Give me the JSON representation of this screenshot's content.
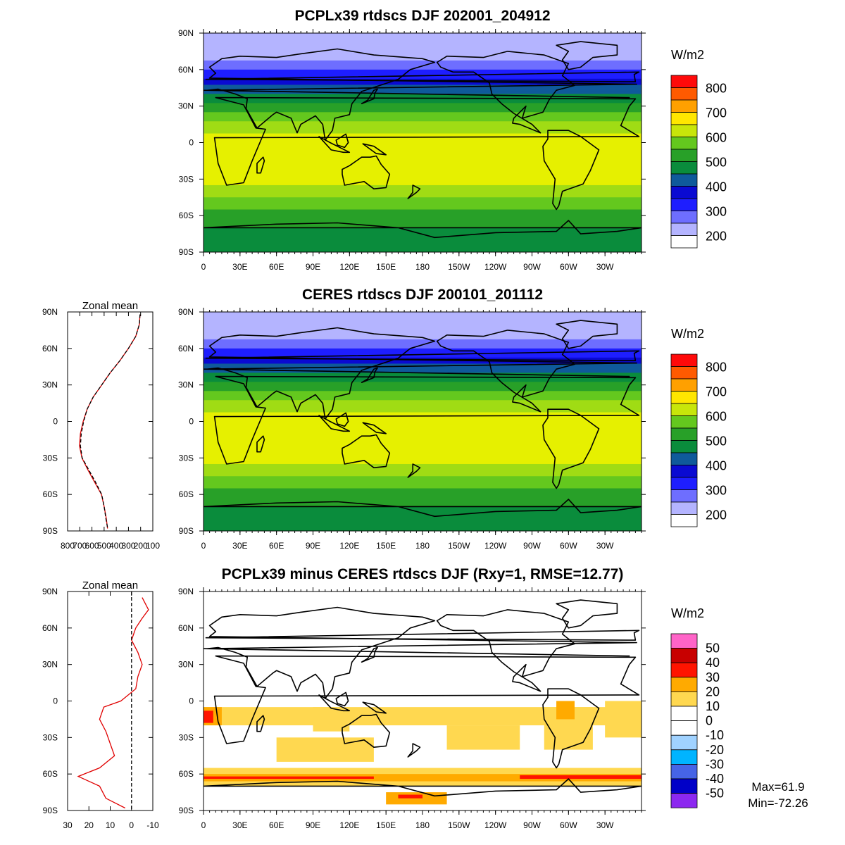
{
  "chart_data": [
    {
      "type": "heatmap",
      "title": "PCPLx39 rtdscs DJF 202001_204912",
      "x_ticks": [
        "0",
        "30E",
        "60E",
        "90E",
        "120E",
        "150E",
        "180",
        "150W",
        "120W",
        "90W",
        "60W",
        "30W"
      ],
      "y_ticks": [
        "90N",
        "60N",
        "30N",
        "0",
        "30S",
        "60S",
        "90S"
      ],
      "colorbar": {
        "unit": "W/m2",
        "levels": [
          "200",
          "300",
          "400",
          "500",
          "600",
          "700",
          "800"
        ],
        "colors": [
          "#ffffff",
          "#b4b4ff",
          "#6e6eff",
          "#1e1eff",
          "#0a0ad2",
          "#0f5a9b",
          "#0a8c3c",
          "#28a028",
          "#64c81e",
          "#a0dc14",
          "#e6f000",
          "#ffe600",
          "#ffa000",
          "#ff5a00",
          "#ff0a0a"
        ]
      },
      "latitude_profile": [
        {
          "lat": 90,
          "value": 200
        },
        {
          "lat": 80,
          "value": 210
        },
        {
          "lat": 70,
          "value": 240
        },
        {
          "lat": 60,
          "value": 300
        },
        {
          "lat": 50,
          "value": 370
        },
        {
          "lat": 40,
          "value": 450
        },
        {
          "lat": 30,
          "value": 520
        },
        {
          "lat": 20,
          "value": 590
        },
        {
          "lat": 10,
          "value": 640
        },
        {
          "lat": 0,
          "value": 670
        },
        {
          "lat": -10,
          "value": 695
        },
        {
          "lat": -20,
          "value": 700
        },
        {
          "lat": -30,
          "value": 680
        },
        {
          "lat": -40,
          "value": 630
        },
        {
          "lat": -50,
          "value": 575
        },
        {
          "lat": -60,
          "value": 520
        },
        {
          "lat": -70,
          "value": 500
        },
        {
          "lat": -80,
          "value": 480
        },
        {
          "lat": -90,
          "value": 470
        }
      ]
    },
    {
      "type": "heatmap",
      "title": "CERES rtdscs DJF 200101_201112",
      "x_ticks": [
        "0",
        "30E",
        "60E",
        "90E",
        "120E",
        "150E",
        "180",
        "150W",
        "120W",
        "90W",
        "60W",
        "30W"
      ],
      "y_ticks": [
        "90N",
        "60N",
        "30N",
        "0",
        "30S",
        "60S",
        "90S"
      ],
      "colorbar": {
        "unit": "W/m2",
        "levels": [
          "200",
          "300",
          "400",
          "500",
          "600",
          "700",
          "800"
        ],
        "colors": [
          "#ffffff",
          "#b4b4ff",
          "#6e6eff",
          "#1e1eff",
          "#0a0ad2",
          "#0f5a9b",
          "#0a8c3c",
          "#28a028",
          "#64c81e",
          "#a0dc14",
          "#e6f000",
          "#ffe600",
          "#ffa000",
          "#ff5a00",
          "#ff0a0a"
        ]
      },
      "latitude_profile": [
        {
          "lat": 90,
          "value": 200
        },
        {
          "lat": 80,
          "value": 210
        },
        {
          "lat": 70,
          "value": 240
        },
        {
          "lat": 60,
          "value": 300
        },
        {
          "lat": 50,
          "value": 370
        },
        {
          "lat": 40,
          "value": 450
        },
        {
          "lat": 30,
          "value": 520
        },
        {
          "lat": 20,
          "value": 590
        },
        {
          "lat": 10,
          "value": 640
        },
        {
          "lat": 0,
          "value": 670
        },
        {
          "lat": -10,
          "value": 690
        },
        {
          "lat": -20,
          "value": 695
        },
        {
          "lat": -30,
          "value": 680
        },
        {
          "lat": -40,
          "value": 625
        },
        {
          "lat": -50,
          "value": 570
        },
        {
          "lat": -60,
          "value": 520
        },
        {
          "lat": -70,
          "value": 500
        },
        {
          "lat": -80,
          "value": 485
        },
        {
          "lat": -90,
          "value": 470
        }
      ],
      "zonal_mean": {
        "title": "Zonal mean",
        "x_ticks": [
          "800",
          "700",
          "600",
          "500",
          "400",
          "300",
          "200",
          "100"
        ],
        "xlim": [
          800,
          100
        ],
        "y_ticks": [
          "90N",
          "60N",
          "30N",
          "0",
          "30S",
          "60S",
          "90S"
        ],
        "series": [
          {
            "color": "#e00000",
            "dash": "solid",
            "points": [
              [
                205,
                88
              ],
              [
                210,
                80
              ],
              [
                240,
                70
              ],
              [
                300,
                60
              ],
              [
                370,
                50
              ],
              [
                450,
                40
              ],
              [
                520,
                30
              ],
              [
                590,
                20
              ],
              [
                640,
                10
              ],
              [
                672,
                0
              ],
              [
                695,
                -10
              ],
              [
                702,
                -20
              ],
              [
                682,
                -30
              ],
              [
                632,
                -40
              ],
              [
                577,
                -50
              ],
              [
                522,
                -60
              ],
              [
                500,
                -70
              ],
              [
                482,
                -80
              ],
              [
                472,
                -88
              ]
            ]
          },
          {
            "color": "#000000",
            "dash": "dashed",
            "points": [
              [
                205,
                88
              ],
              [
                210,
                80
              ],
              [
                240,
                70
              ],
              [
                300,
                60
              ],
              [
                370,
                50
              ],
              [
                450,
                40
              ],
              [
                520,
                30
              ],
              [
                590,
                20
              ],
              [
                640,
                10
              ],
              [
                668,
                0
              ],
              [
                688,
                -10
              ],
              [
                695,
                -20
              ],
              [
                680,
                -30
              ],
              [
                625,
                -40
              ],
              [
                570,
                -50
              ],
              [
                520,
                -60
              ],
              [
                500,
                -70
              ],
              [
                485,
                -80
              ],
              [
                470,
                -88
              ]
            ]
          }
        ]
      }
    },
    {
      "type": "heatmap",
      "title": "PCPLx39 minus CERES rtdscs DJF (Rxy=1, RMSE=12.77)",
      "x_ticks": [
        "0",
        "30E",
        "60E",
        "90E",
        "120E",
        "150E",
        "180",
        "150W",
        "120W",
        "90W",
        "60W",
        "30W"
      ],
      "y_ticks": [
        "90N",
        "60N",
        "30N",
        "0",
        "30S",
        "60S",
        "90S"
      ],
      "colorbar": {
        "unit": "W/m2",
        "levels": [
          "50",
          "40",
          "30",
          "20",
          "10",
          "0",
          "-10",
          "-20",
          "-30",
          "-40",
          "-50"
        ],
        "colors": [
          "#ff64c8",
          "#c80000",
          "#ff1400",
          "#ffaa00",
          "#ffd850",
          "#ffffff",
          "#ffffff",
          "#a0d2ff",
          "#00b4ff",
          "#4664e6",
          "#0000c8",
          "#8c28f0"
        ]
      },
      "stats": {
        "max": "Max=61.9",
        "min": "Min=-72.26"
      },
      "zonal_mean": {
        "title": "Zonal mean",
        "x_ticks": [
          "30",
          "20",
          "10",
          "0",
          "-10"
        ],
        "xlim": [
          30,
          -10
        ],
        "y_ticks": [
          "90N",
          "60N",
          "30N",
          "0",
          "30S",
          "60S",
          "90S"
        ],
        "series": [
          {
            "color": "#e00000",
            "dash": "solid",
            "points": [
              [
                -5,
                85
              ],
              [
                -8,
                75
              ],
              [
                -5,
                68
              ],
              [
                -2,
                60
              ],
              [
                0,
                50
              ],
              [
                -3,
                40
              ],
              [
                -5,
                30
              ],
              [
                -3,
                20
              ],
              [
                -2,
                10
              ],
              [
                5,
                0
              ],
              [
                13,
                -5
              ],
              [
                15,
                -15
              ],
              [
                12,
                -25
              ],
              [
                10,
                -35
              ],
              [
                8,
                -45
              ],
              [
                15,
                -55
              ],
              [
                25,
                -62
              ],
              [
                15,
                -70
              ],
              [
                12,
                -80
              ],
              [
                3,
                -88
              ]
            ]
          },
          {
            "color": "#000000",
            "dash": "dashed",
            "points": [
              [
                0,
                90
              ],
              [
                0,
                -90
              ]
            ]
          }
        ]
      }
    }
  ]
}
